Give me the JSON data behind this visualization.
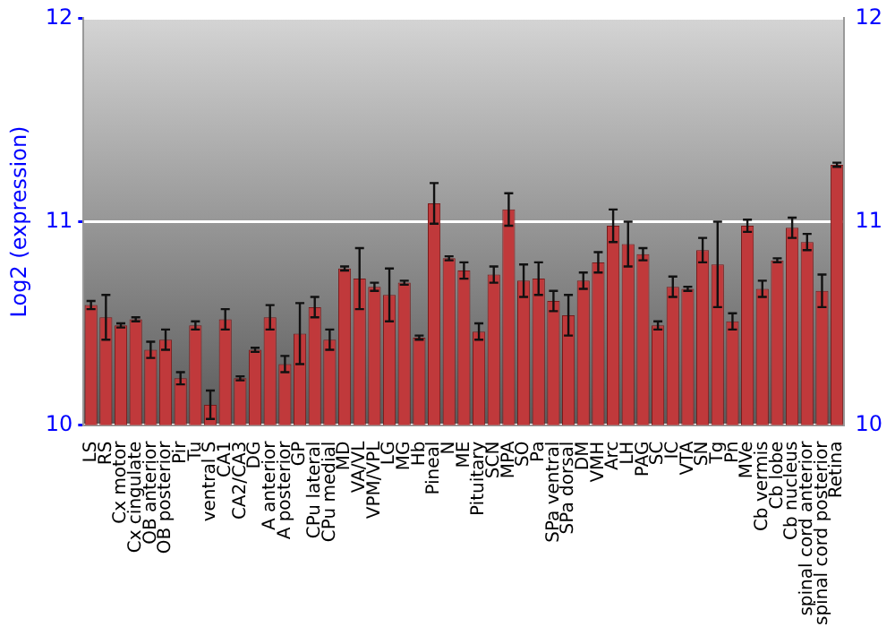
{
  "chart_data": {
    "type": "bar",
    "ylabel": "Log2 (expression)",
    "categories": [
      "LS",
      "RS",
      "Cx motor",
      "Cx cingulate",
      "OB anterior",
      "OB posterior",
      "Pir",
      "Tu",
      "ventral S",
      "CA1",
      "CA2/CA3",
      "DG",
      "A anterior",
      "A posterior",
      "GP",
      "CPu lateral",
      "CPu medial",
      "MD",
      "VA/VL",
      "VPM/VPL",
      "LG",
      "MG",
      "Hb",
      "Pineal",
      "N",
      "ME",
      "Pituitary",
      "SCN",
      "MPA",
      "SO",
      "Pa",
      "SPa ventral",
      "SPa dorsal",
      "DM",
      "VMH",
      "Arc",
      "LH",
      "PAG",
      "SC",
      "IC",
      "VTA",
      "SN",
      "Tg",
      "Pn",
      "MVe",
      "Cb vermis",
      "Cb lobe",
      "Cb nucleus",
      "spinal cord anterior",
      "spinal cord posterior",
      "Retina"
    ],
    "values": [
      10.59,
      10.53,
      10.49,
      10.52,
      10.37,
      10.42,
      10.23,
      10.49,
      10.1,
      10.52,
      10.23,
      10.37,
      10.53,
      10.3,
      10.45,
      10.58,
      10.42,
      10.77,
      10.72,
      10.68,
      10.64,
      10.7,
      10.43,
      11.09,
      10.82,
      10.76,
      10.46,
      10.74,
      11.06,
      10.71,
      10.72,
      10.61,
      10.54,
      10.71,
      10.8,
      10.98,
      10.89,
      10.84,
      10.49,
      10.68,
      10.67,
      10.86,
      10.79,
      10.51,
      10.98,
      10.67,
      10.81,
      10.97,
      10.9,
      10.66,
      11.28
    ],
    "errors": [
      0.02,
      0.11,
      0.01,
      0.01,
      0.04,
      0.05,
      0.03,
      0.02,
      0.07,
      0.05,
      0.01,
      0.01,
      0.06,
      0.04,
      0.15,
      0.05,
      0.05,
      0.01,
      0.15,
      0.02,
      0.13,
      0.01,
      0.01,
      0.1,
      0.01,
      0.04,
      0.04,
      0.04,
      0.08,
      0.08,
      0.08,
      0.05,
      0.1,
      0.04,
      0.05,
      0.08,
      0.11,
      0.03,
      0.02,
      0.05,
      0.01,
      0.06,
      0.21,
      0.04,
      0.03,
      0.04,
      0.01,
      0.05,
      0.04,
      0.08,
      0.01
    ],
    "color": "#c0393b",
    "ylim": [
      10,
      12
    ],
    "yticks": [
      10,
      11,
      12
    ],
    "y2lim": [
      10,
      12
    ],
    "y2ticks": [
      10,
      11,
      12
    ],
    "grid": "y",
    "legend": false
  }
}
